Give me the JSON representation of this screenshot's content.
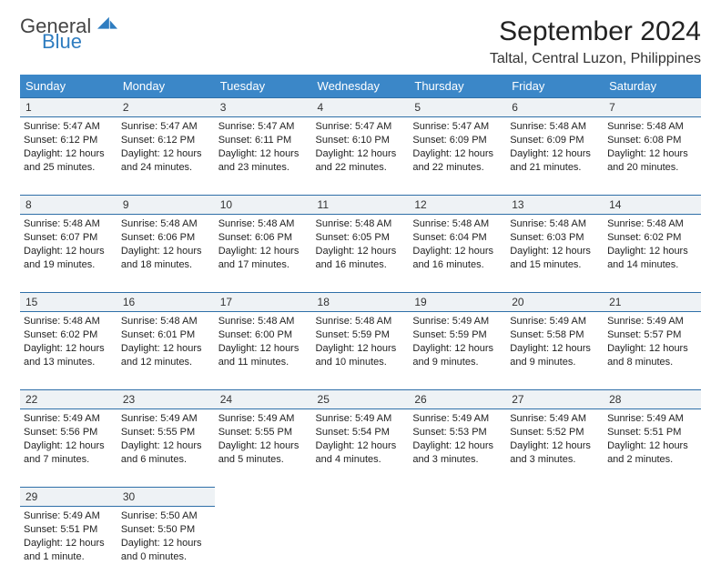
{
  "logo": {
    "general": "General",
    "blue": "Blue"
  },
  "title": "September 2024",
  "subtitle": "Taltal, Central Luzon, Philippines",
  "colors": {
    "header_bg": "#3b87c8",
    "header_text": "#ffffff",
    "daynum_bg": "#eef2f5",
    "row_border": "#2f6fa8",
    "logo_blue": "#2f7dc0",
    "body_text": "#222222",
    "background": "#ffffff"
  },
  "fonts": {
    "title_size": 30,
    "subtitle_size": 16,
    "header_size": 13,
    "daynum_size": 12,
    "cell_size": 11
  },
  "day_headers": [
    "Sunday",
    "Monday",
    "Tuesday",
    "Wednesday",
    "Thursday",
    "Friday",
    "Saturday"
  ],
  "weeks": [
    {
      "nums": [
        "1",
        "2",
        "3",
        "4",
        "5",
        "6",
        "7"
      ],
      "cells": [
        {
          "sunrise": "Sunrise: 5:47 AM",
          "sunset": "Sunset: 6:12 PM",
          "d1": "Daylight: 12 hours",
          "d2": "and 25 minutes."
        },
        {
          "sunrise": "Sunrise: 5:47 AM",
          "sunset": "Sunset: 6:12 PM",
          "d1": "Daylight: 12 hours",
          "d2": "and 24 minutes."
        },
        {
          "sunrise": "Sunrise: 5:47 AM",
          "sunset": "Sunset: 6:11 PM",
          "d1": "Daylight: 12 hours",
          "d2": "and 23 minutes."
        },
        {
          "sunrise": "Sunrise: 5:47 AM",
          "sunset": "Sunset: 6:10 PM",
          "d1": "Daylight: 12 hours",
          "d2": "and 22 minutes."
        },
        {
          "sunrise": "Sunrise: 5:47 AM",
          "sunset": "Sunset: 6:09 PM",
          "d1": "Daylight: 12 hours",
          "d2": "and 22 minutes."
        },
        {
          "sunrise": "Sunrise: 5:48 AM",
          "sunset": "Sunset: 6:09 PM",
          "d1": "Daylight: 12 hours",
          "d2": "and 21 minutes."
        },
        {
          "sunrise": "Sunrise: 5:48 AM",
          "sunset": "Sunset: 6:08 PM",
          "d1": "Daylight: 12 hours",
          "d2": "and 20 minutes."
        }
      ]
    },
    {
      "nums": [
        "8",
        "9",
        "10",
        "11",
        "12",
        "13",
        "14"
      ],
      "cells": [
        {
          "sunrise": "Sunrise: 5:48 AM",
          "sunset": "Sunset: 6:07 PM",
          "d1": "Daylight: 12 hours",
          "d2": "and 19 minutes."
        },
        {
          "sunrise": "Sunrise: 5:48 AM",
          "sunset": "Sunset: 6:06 PM",
          "d1": "Daylight: 12 hours",
          "d2": "and 18 minutes."
        },
        {
          "sunrise": "Sunrise: 5:48 AM",
          "sunset": "Sunset: 6:06 PM",
          "d1": "Daylight: 12 hours",
          "d2": "and 17 minutes."
        },
        {
          "sunrise": "Sunrise: 5:48 AM",
          "sunset": "Sunset: 6:05 PM",
          "d1": "Daylight: 12 hours",
          "d2": "and 16 minutes."
        },
        {
          "sunrise": "Sunrise: 5:48 AM",
          "sunset": "Sunset: 6:04 PM",
          "d1": "Daylight: 12 hours",
          "d2": "and 16 minutes."
        },
        {
          "sunrise": "Sunrise: 5:48 AM",
          "sunset": "Sunset: 6:03 PM",
          "d1": "Daylight: 12 hours",
          "d2": "and 15 minutes."
        },
        {
          "sunrise": "Sunrise: 5:48 AM",
          "sunset": "Sunset: 6:02 PM",
          "d1": "Daylight: 12 hours",
          "d2": "and 14 minutes."
        }
      ]
    },
    {
      "nums": [
        "15",
        "16",
        "17",
        "18",
        "19",
        "20",
        "21"
      ],
      "cells": [
        {
          "sunrise": "Sunrise: 5:48 AM",
          "sunset": "Sunset: 6:02 PM",
          "d1": "Daylight: 12 hours",
          "d2": "and 13 minutes."
        },
        {
          "sunrise": "Sunrise: 5:48 AM",
          "sunset": "Sunset: 6:01 PM",
          "d1": "Daylight: 12 hours",
          "d2": "and 12 minutes."
        },
        {
          "sunrise": "Sunrise: 5:48 AM",
          "sunset": "Sunset: 6:00 PM",
          "d1": "Daylight: 12 hours",
          "d2": "and 11 minutes."
        },
        {
          "sunrise": "Sunrise: 5:48 AM",
          "sunset": "Sunset: 5:59 PM",
          "d1": "Daylight: 12 hours",
          "d2": "and 10 minutes."
        },
        {
          "sunrise": "Sunrise: 5:49 AM",
          "sunset": "Sunset: 5:59 PM",
          "d1": "Daylight: 12 hours",
          "d2": "and 9 minutes."
        },
        {
          "sunrise": "Sunrise: 5:49 AM",
          "sunset": "Sunset: 5:58 PM",
          "d1": "Daylight: 12 hours",
          "d2": "and 9 minutes."
        },
        {
          "sunrise": "Sunrise: 5:49 AM",
          "sunset": "Sunset: 5:57 PM",
          "d1": "Daylight: 12 hours",
          "d2": "and 8 minutes."
        }
      ]
    },
    {
      "nums": [
        "22",
        "23",
        "24",
        "25",
        "26",
        "27",
        "28"
      ],
      "cells": [
        {
          "sunrise": "Sunrise: 5:49 AM",
          "sunset": "Sunset: 5:56 PM",
          "d1": "Daylight: 12 hours",
          "d2": "and 7 minutes."
        },
        {
          "sunrise": "Sunrise: 5:49 AM",
          "sunset": "Sunset: 5:55 PM",
          "d1": "Daylight: 12 hours",
          "d2": "and 6 minutes."
        },
        {
          "sunrise": "Sunrise: 5:49 AM",
          "sunset": "Sunset: 5:55 PM",
          "d1": "Daylight: 12 hours",
          "d2": "and 5 minutes."
        },
        {
          "sunrise": "Sunrise: 5:49 AM",
          "sunset": "Sunset: 5:54 PM",
          "d1": "Daylight: 12 hours",
          "d2": "and 4 minutes."
        },
        {
          "sunrise": "Sunrise: 5:49 AM",
          "sunset": "Sunset: 5:53 PM",
          "d1": "Daylight: 12 hours",
          "d2": "and 3 minutes."
        },
        {
          "sunrise": "Sunrise: 5:49 AM",
          "sunset": "Sunset: 5:52 PM",
          "d1": "Daylight: 12 hours",
          "d2": "and 3 minutes."
        },
        {
          "sunrise": "Sunrise: 5:49 AM",
          "sunset": "Sunset: 5:51 PM",
          "d1": "Daylight: 12 hours",
          "d2": "and 2 minutes."
        }
      ]
    },
    {
      "nums": [
        "29",
        "30",
        "",
        "",
        "",
        "",
        ""
      ],
      "cells": [
        {
          "sunrise": "Sunrise: 5:49 AM",
          "sunset": "Sunset: 5:51 PM",
          "d1": "Daylight: 12 hours",
          "d2": "and 1 minute."
        },
        {
          "sunrise": "Sunrise: 5:50 AM",
          "sunset": "Sunset: 5:50 PM",
          "d1": "Daylight: 12 hours",
          "d2": "and 0 minutes."
        },
        null,
        null,
        null,
        null,
        null
      ]
    }
  ]
}
